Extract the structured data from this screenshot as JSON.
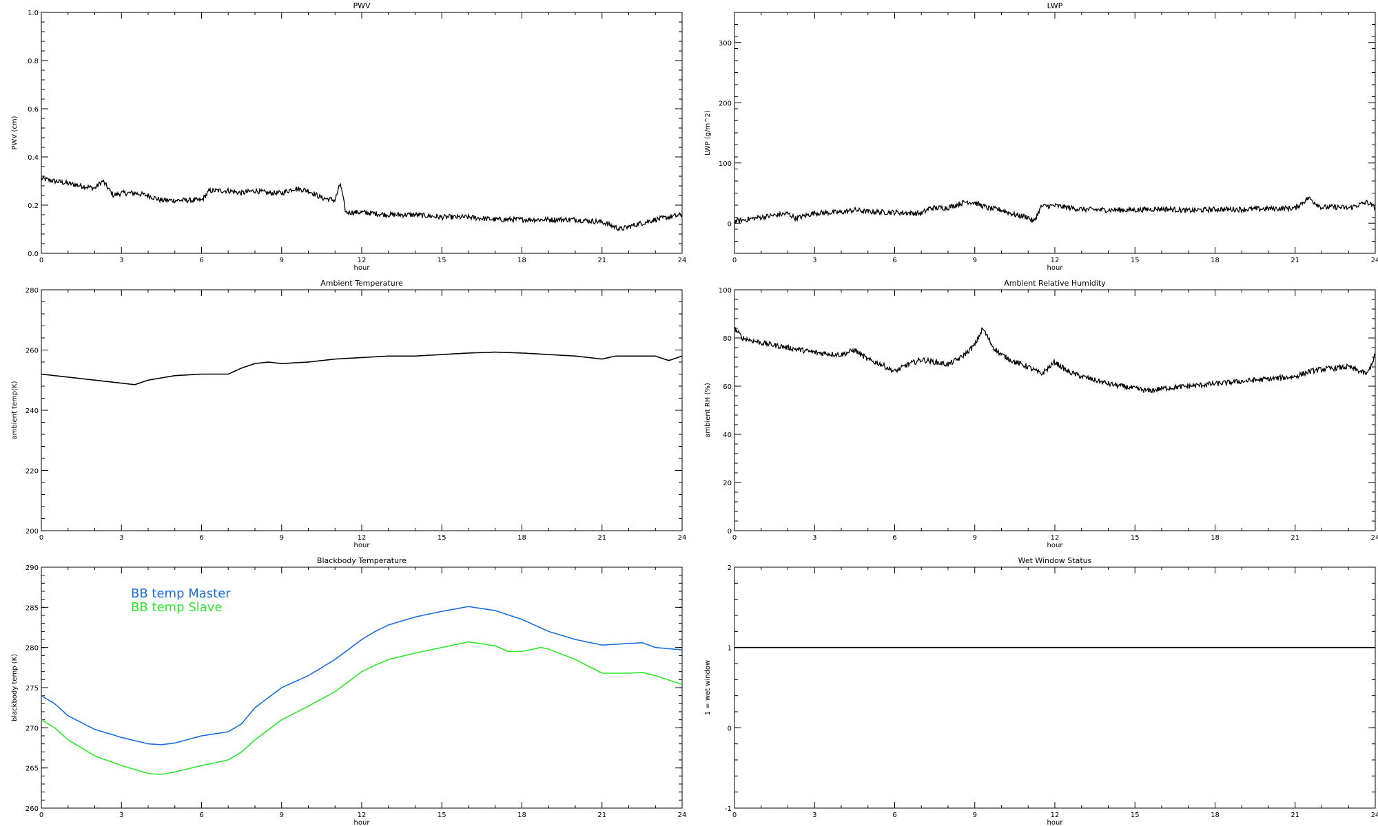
{
  "chart_data": [
    {
      "type": "line",
      "title": "PWV",
      "xlabel": "hour",
      "ylabel": "PWV (cm)",
      "xlim": [
        0,
        24
      ],
      "ylim": [
        0.0,
        1.0
      ],
      "xticks": [
        "0",
        "3",
        "6",
        "9",
        "12",
        "15",
        "18",
        "21",
        "24"
      ],
      "yticks": [
        "0.0",
        "0.2",
        "0.4",
        "0.6",
        "0.8",
        "1.0"
      ],
      "series": [
        {
          "color": "#000000",
          "noisy": true,
          "x": [
            0,
            0.5,
            1,
            1.5,
            2,
            2.3,
            2.7,
            3,
            3.5,
            4,
            4.5,
            5,
            5.5,
            6,
            6.3,
            7,
            7.5,
            8,
            8.5,
            9,
            9.5,
            10,
            10.5,
            11,
            11.2,
            11.4,
            12,
            13,
            14,
            15,
            16,
            17,
            18,
            19,
            20,
            21,
            21.7,
            22.3,
            23,
            24
          ],
          "y": [
            0.31,
            0.3,
            0.29,
            0.28,
            0.27,
            0.3,
            0.24,
            0.25,
            0.25,
            0.24,
            0.22,
            0.22,
            0.22,
            0.22,
            0.26,
            0.26,
            0.25,
            0.26,
            0.25,
            0.25,
            0.27,
            0.26,
            0.23,
            0.22,
            0.29,
            0.17,
            0.17,
            0.16,
            0.16,
            0.15,
            0.15,
            0.14,
            0.14,
            0.14,
            0.14,
            0.13,
            0.1,
            0.12,
            0.14,
            0.16
          ]
        }
      ]
    },
    {
      "type": "line",
      "title": "LWP",
      "xlabel": "hour",
      "ylabel": "LWP (g/m^2)",
      "xlim": [
        0,
        24
      ],
      "ylim": [
        -50,
        350
      ],
      "xticks": [
        "0",
        "3",
        "6",
        "9",
        "12",
        "15",
        "18",
        "21",
        "24"
      ],
      "yticks": [
        "0",
        "100",
        "200",
        "300"
      ],
      "series": [
        {
          "color": "#000000",
          "noisy": true,
          "x": [
            0,
            1,
            2,
            2.3,
            3,
            4,
            4.5,
            5,
            6,
            7,
            7.3,
            8,
            8.7,
            9,
            9.5,
            10,
            10.5,
            11,
            11.2,
            11.5,
            12,
            13,
            14,
            15,
            16,
            17,
            18,
            19,
            20,
            21,
            21.5,
            22,
            22.5,
            23,
            23.7,
            24
          ],
          "y": [
            3,
            10,
            16,
            8,
            17,
            18,
            22,
            19,
            18,
            16,
            25,
            26,
            36,
            34,
            25,
            22,
            14,
            10,
            2,
            28,
            29,
            23,
            22,
            22,
            24,
            21,
            23,
            23,
            24,
            25,
            42,
            26,
            27,
            25,
            35,
            25
          ]
        }
      ]
    },
    {
      "type": "line",
      "title": "Ambient Temperature",
      "xlabel": "hour",
      "ylabel": "ambient temp(K)",
      "xlim": [
        0,
        24
      ],
      "ylim": [
        200,
        280
      ],
      "xticks": [
        "0",
        "3",
        "6",
        "9",
        "12",
        "15",
        "18",
        "21",
        "24"
      ],
      "yticks": [
        "200",
        "220",
        "240",
        "260",
        "280"
      ],
      "series": [
        {
          "color": "#000000",
          "noisy": false,
          "x": [
            0,
            1,
            2,
            3,
            3.5,
            4,
            5,
            6,
            7,
            7.5,
            8,
            8.5,
            9,
            10,
            11,
            12,
            13,
            14,
            15,
            16,
            17,
            18,
            19,
            20,
            21,
            21.5,
            22,
            23,
            23.5,
            24
          ],
          "y": [
            252,
            251,
            250,
            249,
            248.5,
            250,
            251.5,
            252,
            252,
            254,
            255.5,
            256,
            255.5,
            256,
            257,
            257.5,
            258,
            258,
            258.5,
            259,
            259.3,
            259,
            258.5,
            258,
            257,
            258,
            258,
            258,
            256.5,
            258
          ]
        }
      ]
    },
    {
      "type": "line",
      "title": "Ambient Relative Humidity",
      "xlabel": "hour",
      "ylabel": "ambient RH (%)",
      "xlim": [
        0,
        24
      ],
      "ylim": [
        0,
        100
      ],
      "xticks": [
        "0",
        "3",
        "6",
        "9",
        "12",
        "15",
        "18",
        "21",
        "24"
      ],
      "yticks": [
        "0",
        "20",
        "40",
        "60",
        "80",
        "100"
      ],
      "series": [
        {
          "color": "#000000",
          "noisy": true,
          "x": [
            0,
            0.3,
            1,
            2,
            3,
            4,
            4.5,
            5,
            5.5,
            6,
            6.5,
            7,
            8,
            8.5,
            9,
            9.3,
            9.7,
            10,
            10.5,
            11,
            11.5,
            12,
            12.5,
            13,
            14,
            15,
            15.5,
            16,
            17,
            18,
            19,
            20,
            21,
            21.5,
            22,
            23,
            23.7,
            24
          ],
          "y": [
            84,
            80,
            78,
            76,
            74,
            73,
            75,
            71,
            69,
            66,
            69,
            71,
            69,
            72,
            77,
            84,
            76,
            73,
            70,
            68,
            65,
            70,
            66,
            64,
            61,
            59,
            58,
            59,
            60,
            61,
            62,
            63,
            64,
            66,
            67,
            68,
            65,
            73
          ]
        }
      ]
    },
    {
      "type": "line",
      "title": "Blackbody Temperature",
      "xlabel": "hour",
      "ylabel": "blackbody temp (K)",
      "xlim": [
        0,
        24
      ],
      "ylim": [
        260,
        290
      ],
      "xticks": [
        "0",
        "3",
        "6",
        "9",
        "12",
        "15",
        "18",
        "21",
        "24"
      ],
      "yticks": [
        "260",
        "265",
        "270",
        "275",
        "280",
        "285",
        "290"
      ],
      "legend": "top-left",
      "series": [
        {
          "name": "BB temp Master",
          "color": "#1a6ee0",
          "noisy": false,
          "x": [
            0,
            0.5,
            1,
            2,
            3,
            4,
            4.5,
            5,
            6,
            7,
            7.5,
            8,
            9,
            10,
            11,
            12,
            12.5,
            13,
            14,
            15,
            16,
            17,
            18,
            19,
            20,
            21,
            22,
            22.5,
            23,
            24
          ],
          "y": [
            274,
            273,
            271.5,
            269.8,
            268.8,
            268,
            267.9,
            268.1,
            269,
            269.5,
            270.5,
            272.5,
            275,
            276.5,
            278.5,
            281,
            282,
            282.8,
            283.8,
            284.5,
            285.1,
            284.6,
            283.5,
            282,
            281,
            280.3,
            280.5,
            280.6,
            280,
            279.7
          ]
        },
        {
          "name": "BB temp Slave",
          "color": "#2ee82e",
          "noisy": false,
          "x": [
            0,
            0.5,
            1,
            2,
            3,
            4,
            4.5,
            5,
            6,
            7,
            7.5,
            8,
            9,
            10,
            11,
            12,
            12.5,
            13,
            14,
            15,
            16,
            17,
            17.5,
            18,
            18.7,
            19,
            20,
            21,
            22,
            22.5,
            23,
            24
          ],
          "y": [
            271,
            270,
            268.5,
            266.5,
            265.3,
            264.3,
            264.2,
            264.5,
            265.3,
            266,
            267,
            268.5,
            271,
            272.7,
            274.5,
            277,
            277.8,
            278.5,
            279.3,
            280,
            280.7,
            280.2,
            279.5,
            279.5,
            280,
            279.8,
            278.5,
            276.8,
            276.8,
            276.9,
            276.5,
            275.4
          ]
        }
      ]
    },
    {
      "type": "line",
      "title": "Wet Window Status",
      "xlabel": "hour",
      "ylabel": "1 = wet window",
      "xlim": [
        0,
        24
      ],
      "ylim": [
        -1,
        2
      ],
      "xticks": [
        "0",
        "3",
        "6",
        "9",
        "12",
        "15",
        "18",
        "21",
        "24"
      ],
      "yticks": [
        "-1",
        "0",
        "1",
        "2"
      ],
      "series": [
        {
          "color": "#000000",
          "noisy": false,
          "x": [
            0,
            24
          ],
          "y": [
            1,
            1
          ]
        }
      ]
    }
  ]
}
